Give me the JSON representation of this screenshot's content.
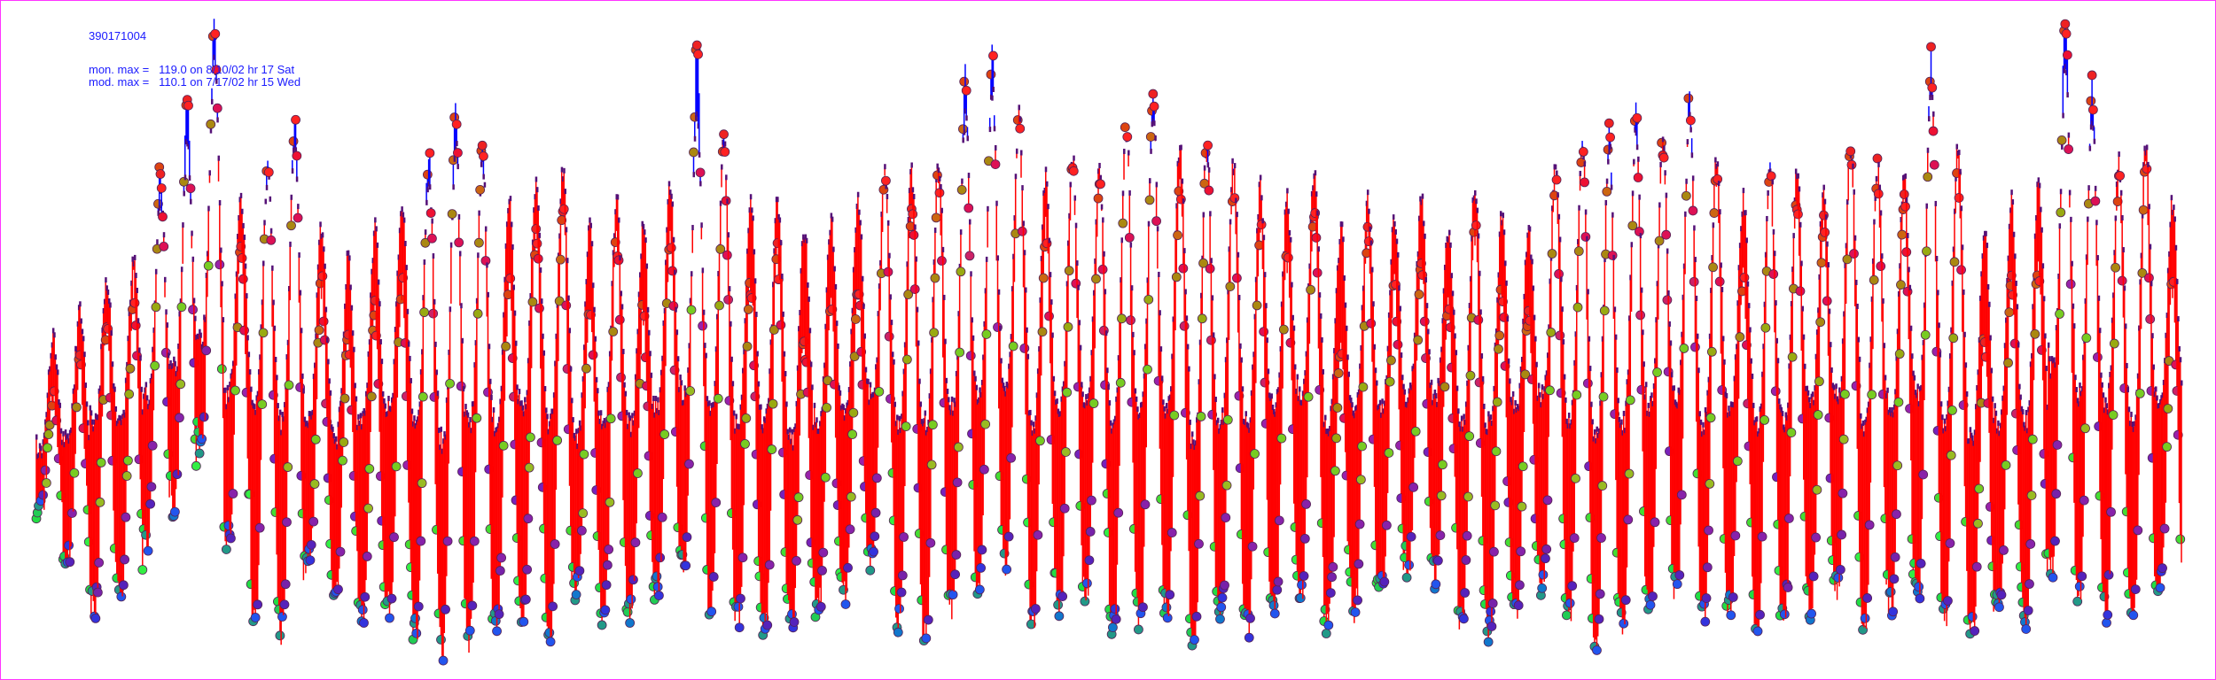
{
  "header": {
    "site_id": "390171004",
    "mon_max": "mon. max =   119.0 on 8/10/02 hr 17 Sat",
    "mod_max": "mod. max =   110.1 on 7/17/02 hr 15 Wed"
  },
  "chart_data": {
    "type": "scatter",
    "title": "",
    "xlabel": "",
    "ylabel": "",
    "ylim": [
      0,
      119
    ],
    "grid": false,
    "legend": "none",
    "series": [
      {
        "name": "",
        "role": "monitor daily max",
        "values": [
          50,
          55,
          62,
          70,
          90,
          103,
          116,
          75,
          95,
          100,
          70,
          60,
          65,
          70,
          95,
          102,
          95,
          70,
          80,
          85,
          66,
          80,
          65,
          80,
          112,
          95,
          70,
          75,
          60,
          65,
          70,
          88,
          85,
          90,
          108,
          112,
          100,
          80,
          90,
          88,
          100,
          105,
          90,
          95,
          90,
          80,
          75,
          85,
          60,
          78,
          70,
          75,
          65,
          80,
          70,
          65,
          90,
          95,
          98,
          100,
          95,
          105,
          90,
          72,
          92,
          85,
          80,
          95,
          90,
          85,
          110,
          90,
          60,
          70,
          75,
          119,
          105,
          90,
          92,
          70
        ]
      },
      {
        "name": "",
        "role": "monitor daily min",
        "values": [
          30,
          20,
          12,
          15,
          25,
          30,
          40,
          25,
          10,
          8,
          20,
          15,
          10,
          12,
          8,
          5,
          6,
          10,
          12,
          8,
          15,
          10,
          12,
          15,
          20,
          12,
          10,
          8,
          10,
          12,
          15,
          20,
          10,
          8,
          12,
          15,
          20,
          10,
          12,
          15,
          8,
          10,
          12,
          5,
          10,
          8,
          12,
          15,
          10,
          12,
          15,
          20,
          18,
          10,
          8,
          12,
          15,
          10,
          5,
          8,
          12,
          15,
          10,
          12,
          8,
          10,
          12,
          15,
          10,
          12,
          15,
          10,
          8,
          12,
          10,
          20,
          15,
          12,
          10,
          15
        ]
      },
      {
        "name": "",
        "role": "model daily max",
        "values": [
          60,
          65,
          70,
          75,
          85,
          95,
          110,
          85,
          90,
          95,
          80,
          75,
          80,
          85,
          90,
          95,
          92,
          85,
          88,
          90,
          80,
          85,
          80,
          88,
          100,
          95,
          85,
          85,
          80,
          82,
          85,
          90,
          90,
          92,
          100,
          105,
          100,
          90,
          92,
          90,
          98,
          100,
          95,
          95,
          92,
          88,
          85,
          90,
          80,
          85,
          82,
          85,
          80,
          88,
          82,
          80,
          92,
          95,
          95,
          98,
          95,
          100,
          92,
          85,
          92,
          90,
          88,
          95,
          92,
          90,
          105,
          95,
          80,
          85,
          88,
          108,
          100,
          92,
          95,
          85
        ]
      },
      {
        "name": "",
        "role": "model daily min",
        "values": [
          40,
          42,
          45,
          45,
          50,
          55,
          60,
          50,
          48,
          45,
          45,
          42,
          45,
          48,
          45,
          42,
          45,
          45,
          48,
          45,
          42,
          45,
          45,
          48,
          50,
          48,
          45,
          45,
          42,
          45,
          48,
          50,
          45,
          45,
          48,
          50,
          52,
          45,
          48,
          48,
          45,
          48,
          48,
          42,
          45,
          45,
          48,
          50,
          45,
          48,
          48,
          50,
          50,
          45,
          45,
          48,
          50,
          45,
          42,
          45,
          48,
          50,
          45,
          48,
          45,
          45,
          48,
          50,
          45,
          48,
          50,
          45,
          42,
          45,
          45,
          55,
          50,
          48,
          45,
          48
        ]
      }
    ],
    "hour_colors": [
      "#22dd44",
      "#22cc55",
      "#229988",
      "#1177cc",
      "#2255ee",
      "#3333dd",
      "#5522bb",
      "#7722aa",
      "#8822aa",
      "#99bb22",
      "#77cc22",
      "#99aa11",
      "#aa8811",
      "#cc6611",
      "#dd4411",
      "#ee2222",
      "#ff2222",
      "#ee1133",
      "#dd1155",
      "#cc2266",
      "#9922aa",
      "#7722bb",
      "#44dd33",
      "#33ee44"
    ],
    "over_color": "#ff0000",
    "under_color": "#0000ff"
  }
}
